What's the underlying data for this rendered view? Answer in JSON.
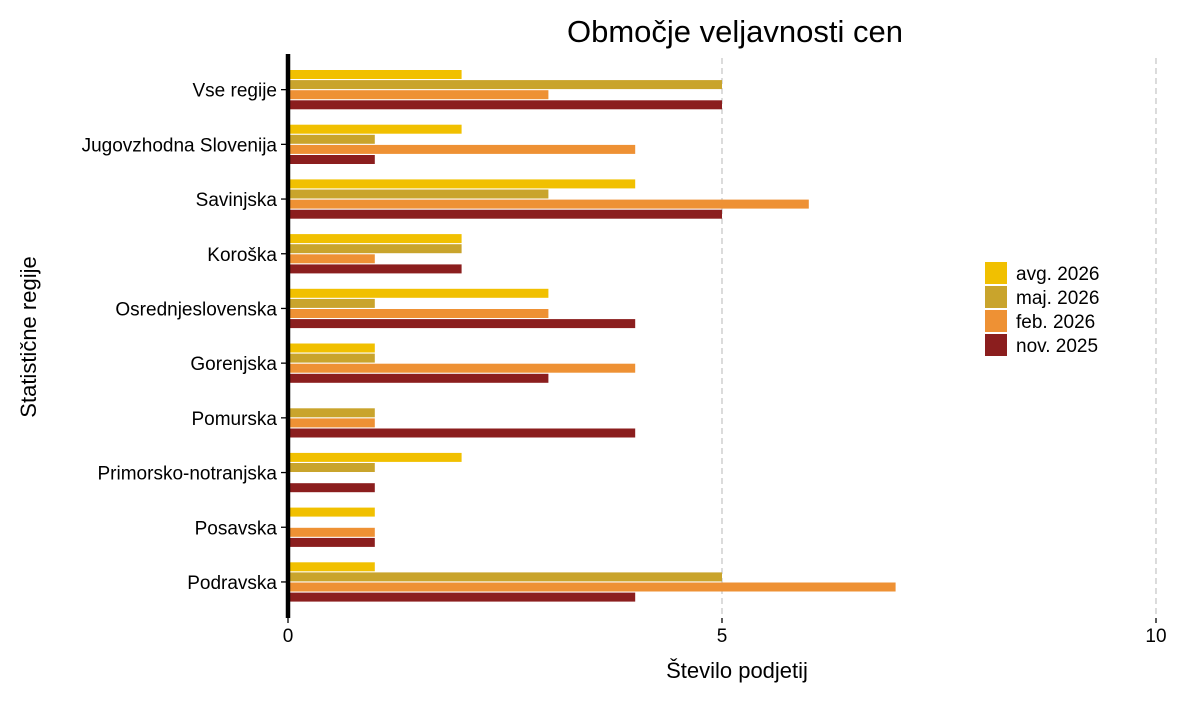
{
  "chart_data": {
    "type": "bar",
    "orientation": "horizontal",
    "title": "Območje veljavnosti cen",
    "xlabel": "Število podjetij",
    "ylabel": "Statistične regije",
    "xlim": [
      0,
      10
    ],
    "xticks": [
      0,
      5,
      10
    ],
    "grid": "vertical dashed at major ticks",
    "legend_position": "right",
    "categories": [
      "Vse regije",
      "Jugovzhodna Slovenija",
      "Savinjska",
      "Koroška",
      "Osrednjeslovenska",
      "Gorenjska",
      "Pomurska",
      "Primorsko-notranjska",
      "Posavska",
      "Podravska"
    ],
    "series": [
      {
        "name": "avg. 2026",
        "color": "#F1C000",
        "values": [
          2,
          2,
          4,
          2,
          3,
          1,
          0,
          2,
          1,
          1
        ]
      },
      {
        "name": "maj. 2026",
        "color": "#C9A42C",
        "values": [
          5,
          1,
          3,
          2,
          1,
          1,
          1,
          1,
          0,
          5
        ]
      },
      {
        "name": "feb. 2026",
        "color": "#EE9134",
        "values": [
          3,
          4,
          6,
          1,
          3,
          4,
          1,
          0,
          1,
          7
        ]
      },
      {
        "name": "nov. 2025",
        "color": "#8B1E1E",
        "values": [
          5,
          1,
          5,
          2,
          4,
          3,
          4,
          1,
          1,
          4
        ]
      }
    ]
  }
}
